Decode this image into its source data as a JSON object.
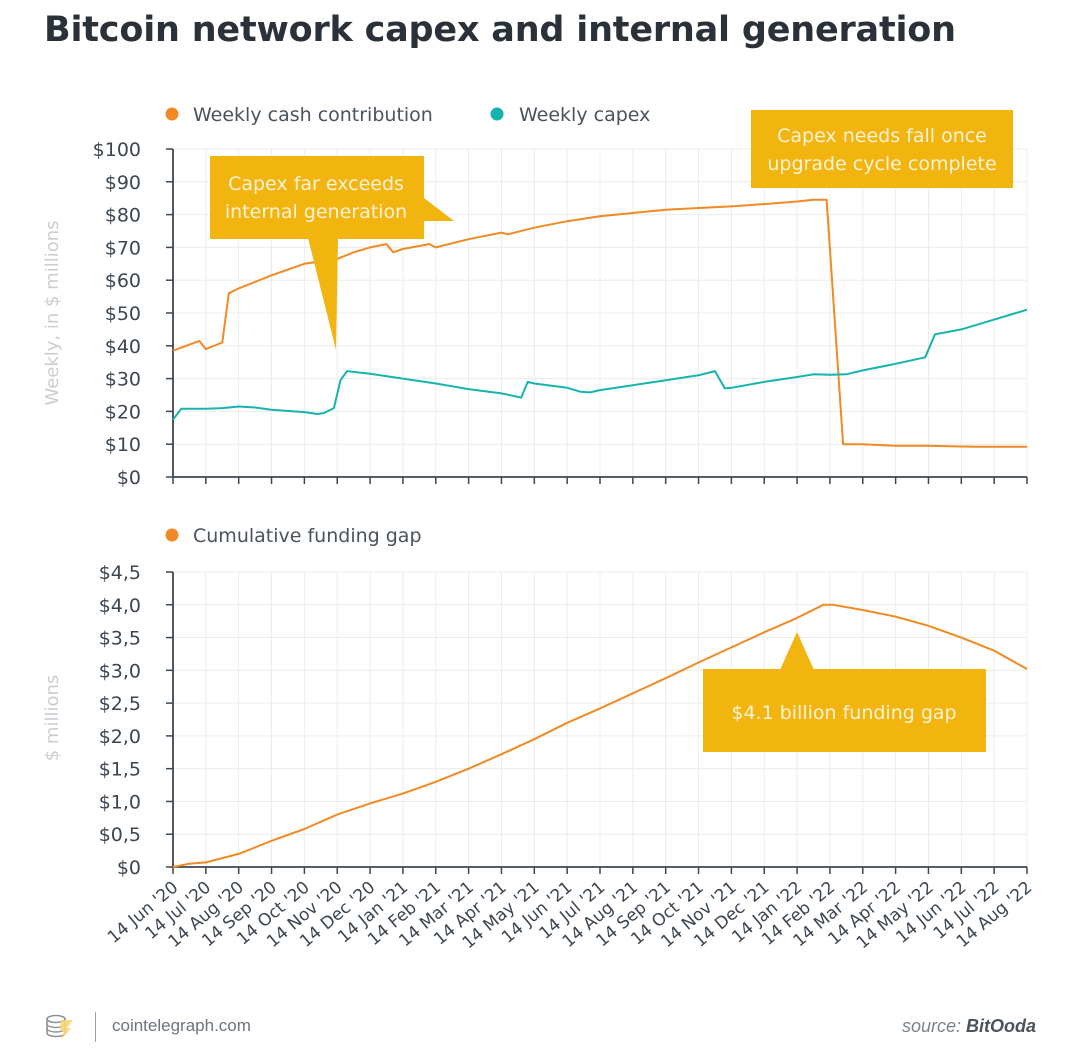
{
  "header": {
    "title": "Bitcoin network capex and internal generation"
  },
  "colors": {
    "orange": "#f08a24",
    "teal": "#17b3ad",
    "callout": "#f2b40f",
    "callout_text": "#fdf3d6",
    "axis": "#3c4650",
    "grid": "#ececec",
    "axis_title": "#c9ced2"
  },
  "footer": {
    "logo_icon": "cointelegraph-logo-icon",
    "site": "cointelegraph.com",
    "source_prefix": "source:",
    "source_name": "BitOoda"
  },
  "chart_data": [
    {
      "type": "line",
      "title": "",
      "xlabel": "",
      "ylabel": "Weekly, in $ millions",
      "ylim": [
        0,
        100
      ],
      "yticks": [
        0,
        10,
        20,
        30,
        40,
        50,
        60,
        70,
        80,
        90,
        100
      ],
      "ytick_labels": [
        "$0",
        "$10",
        "$20",
        "$30",
        "$40",
        "$50",
        "$60",
        "$70",
        "$80",
        "$90",
        "$100"
      ],
      "grid": true,
      "legend_position": "top-left",
      "x_categories": [
        "14 Jun '20",
        "14 Jul '20",
        "14 Aug '20",
        "14 Sep '20",
        "14 Oct '20",
        "14 Nov '20",
        "14 Dec '20",
        "14 Jan '21",
        "14 Feb '21",
        "14 Mar '21",
        "14 Apr '21",
        "14 May '21",
        "14 Jun '21",
        "14 Jul '21",
        "14 Aug '21",
        "14 Sep '21",
        "14 Oct '21",
        "14 Nov '21",
        "14 Dec '21",
        "14 Jan '22",
        "14 Feb '22",
        "14 Mar '22",
        "14 Apr '22",
        "14 May '22",
        "14 Jun '22",
        "14 Jul '22",
        "14 Aug '22"
      ],
      "x_note": "x values are month indices from 14 Jun '20 (0) to 14 Aug '22 (26)",
      "series": [
        {
          "name": "Weekly cash contribution",
          "color_key": "orange",
          "x": [
            0,
            0.8,
            1.0,
            1.5,
            1.7,
            2,
            3,
            4,
            5,
            5.5,
            6,
            6.5,
            6.7,
            7,
            7.8,
            8,
            9,
            10,
            10.2,
            11,
            12,
            13,
            14,
            15,
            16,
            17,
            18,
            19,
            19.5,
            19.9,
            20.4,
            21,
            22,
            23,
            24,
            24.5,
            26
          ],
          "values": [
            38.5,
            41.5,
            39,
            41,
            56,
            57.5,
            61.5,
            65,
            66.5,
            68.5,
            70,
            71,
            68.5,
            69.5,
            71,
            70,
            72.5,
            74.5,
            74,
            76,
            78,
            79.5,
            80.5,
            81.5,
            82,
            82.5,
            83.2,
            84,
            84.5,
            84.5,
            10,
            10,
            9.5,
            9.5,
            9.3,
            9.2,
            9.2
          ]
        },
        {
          "name": "Weekly capex",
          "color_key": "teal",
          "x": [
            0,
            0.25,
            1,
            1.5,
            2,
            2.5,
            3,
            4,
            4.4,
            4.6,
            4.9,
            5.1,
            5.3,
            6,
            7,
            8,
            9,
            10,
            10.6,
            10.8,
            11,
            12,
            12.4,
            12.7,
            13,
            14,
            15,
            16,
            16.5,
            16.8,
            17,
            18,
            19,
            19.5,
            20,
            20.5,
            21,
            22,
            22.9,
            23.2,
            24,
            25,
            26
          ],
          "values": [
            17.5,
            20.8,
            20.8,
            21,
            21.5,
            21.2,
            20.5,
            19.8,
            19.2,
            19.5,
            21,
            29.5,
            32.3,
            31.5,
            30,
            28.5,
            26.8,
            25.5,
            24.2,
            29,
            28.5,
            27.2,
            26,
            25.8,
            26.5,
            28,
            29.5,
            31,
            32.3,
            27,
            27.2,
            29,
            30.5,
            31.3,
            31.2,
            31.3,
            32.5,
            34.5,
            36.5,
            43.5,
            45,
            48,
            51
          ]
        }
      ],
      "annotations": [
        {
          "lines": [
            "Capex far exceeds",
            "internal generation"
          ]
        },
        {
          "lines": [
            "Capex needs fall once",
            "upgrade cycle complete"
          ]
        }
      ]
    },
    {
      "type": "line",
      "title": "",
      "xlabel": "",
      "ylabel": "$ millions",
      "ylim": [
        0,
        4.5
      ],
      "yticks": [
        0,
        0.5,
        1.0,
        1.5,
        2.0,
        2.5,
        3.0,
        3.5,
        4.0,
        4.5
      ],
      "ytick_labels": [
        "$0",
        "$0,5",
        "$1,0",
        "$1,5",
        "$2,0",
        "$2,5",
        "$3,0",
        "$3,5",
        "$4,0",
        "$4,5"
      ],
      "grid": true,
      "legend_position": "top-left",
      "x_categories": [
        "14 Jun '20",
        "14 Jul '20",
        "14 Aug '20",
        "14 Sep '20",
        "14 Oct '20",
        "14 Nov '20",
        "14 Dec '20",
        "14 Jan '21",
        "14 Feb '21",
        "14 Mar '21",
        "14 Apr '21",
        "14 May '21",
        "14 Jun '21",
        "14 Jul '21",
        "14 Aug '21",
        "14 Sep '21",
        "14 Oct '21",
        "14 Nov '21",
        "14 Dec '21",
        "14 Jan '22",
        "14 Feb '22",
        "14 Mar '22",
        "14 Apr '22",
        "14 May '22",
        "14 Jun '22",
        "14 Jul '22",
        "14 Aug '22"
      ],
      "series": [
        {
          "name": "Cumulative funding gap",
          "color_key": "orange",
          "x": [
            0,
            0.5,
            1,
            2,
            3,
            4,
            5,
            6,
            7,
            8,
            9,
            10,
            11,
            12,
            13,
            14,
            15,
            16,
            17,
            18,
            19,
            19.8,
            20.1,
            21,
            22,
            23,
            24,
            25,
            26
          ],
          "values": [
            0,
            0.05,
            0.07,
            0.2,
            0.4,
            0.58,
            0.8,
            0.97,
            1.12,
            1.3,
            1.5,
            1.72,
            1.95,
            2.2,
            2.42,
            2.65,
            2.88,
            3.12,
            3.35,
            3.58,
            3.8,
            4.0,
            4.0,
            3.92,
            3.82,
            3.68,
            3.5,
            3.3,
            3.02
          ]
        }
      ],
      "annotations": [
        {
          "lines": [
            "$4.1 billion funding gap"
          ]
        }
      ]
    }
  ]
}
